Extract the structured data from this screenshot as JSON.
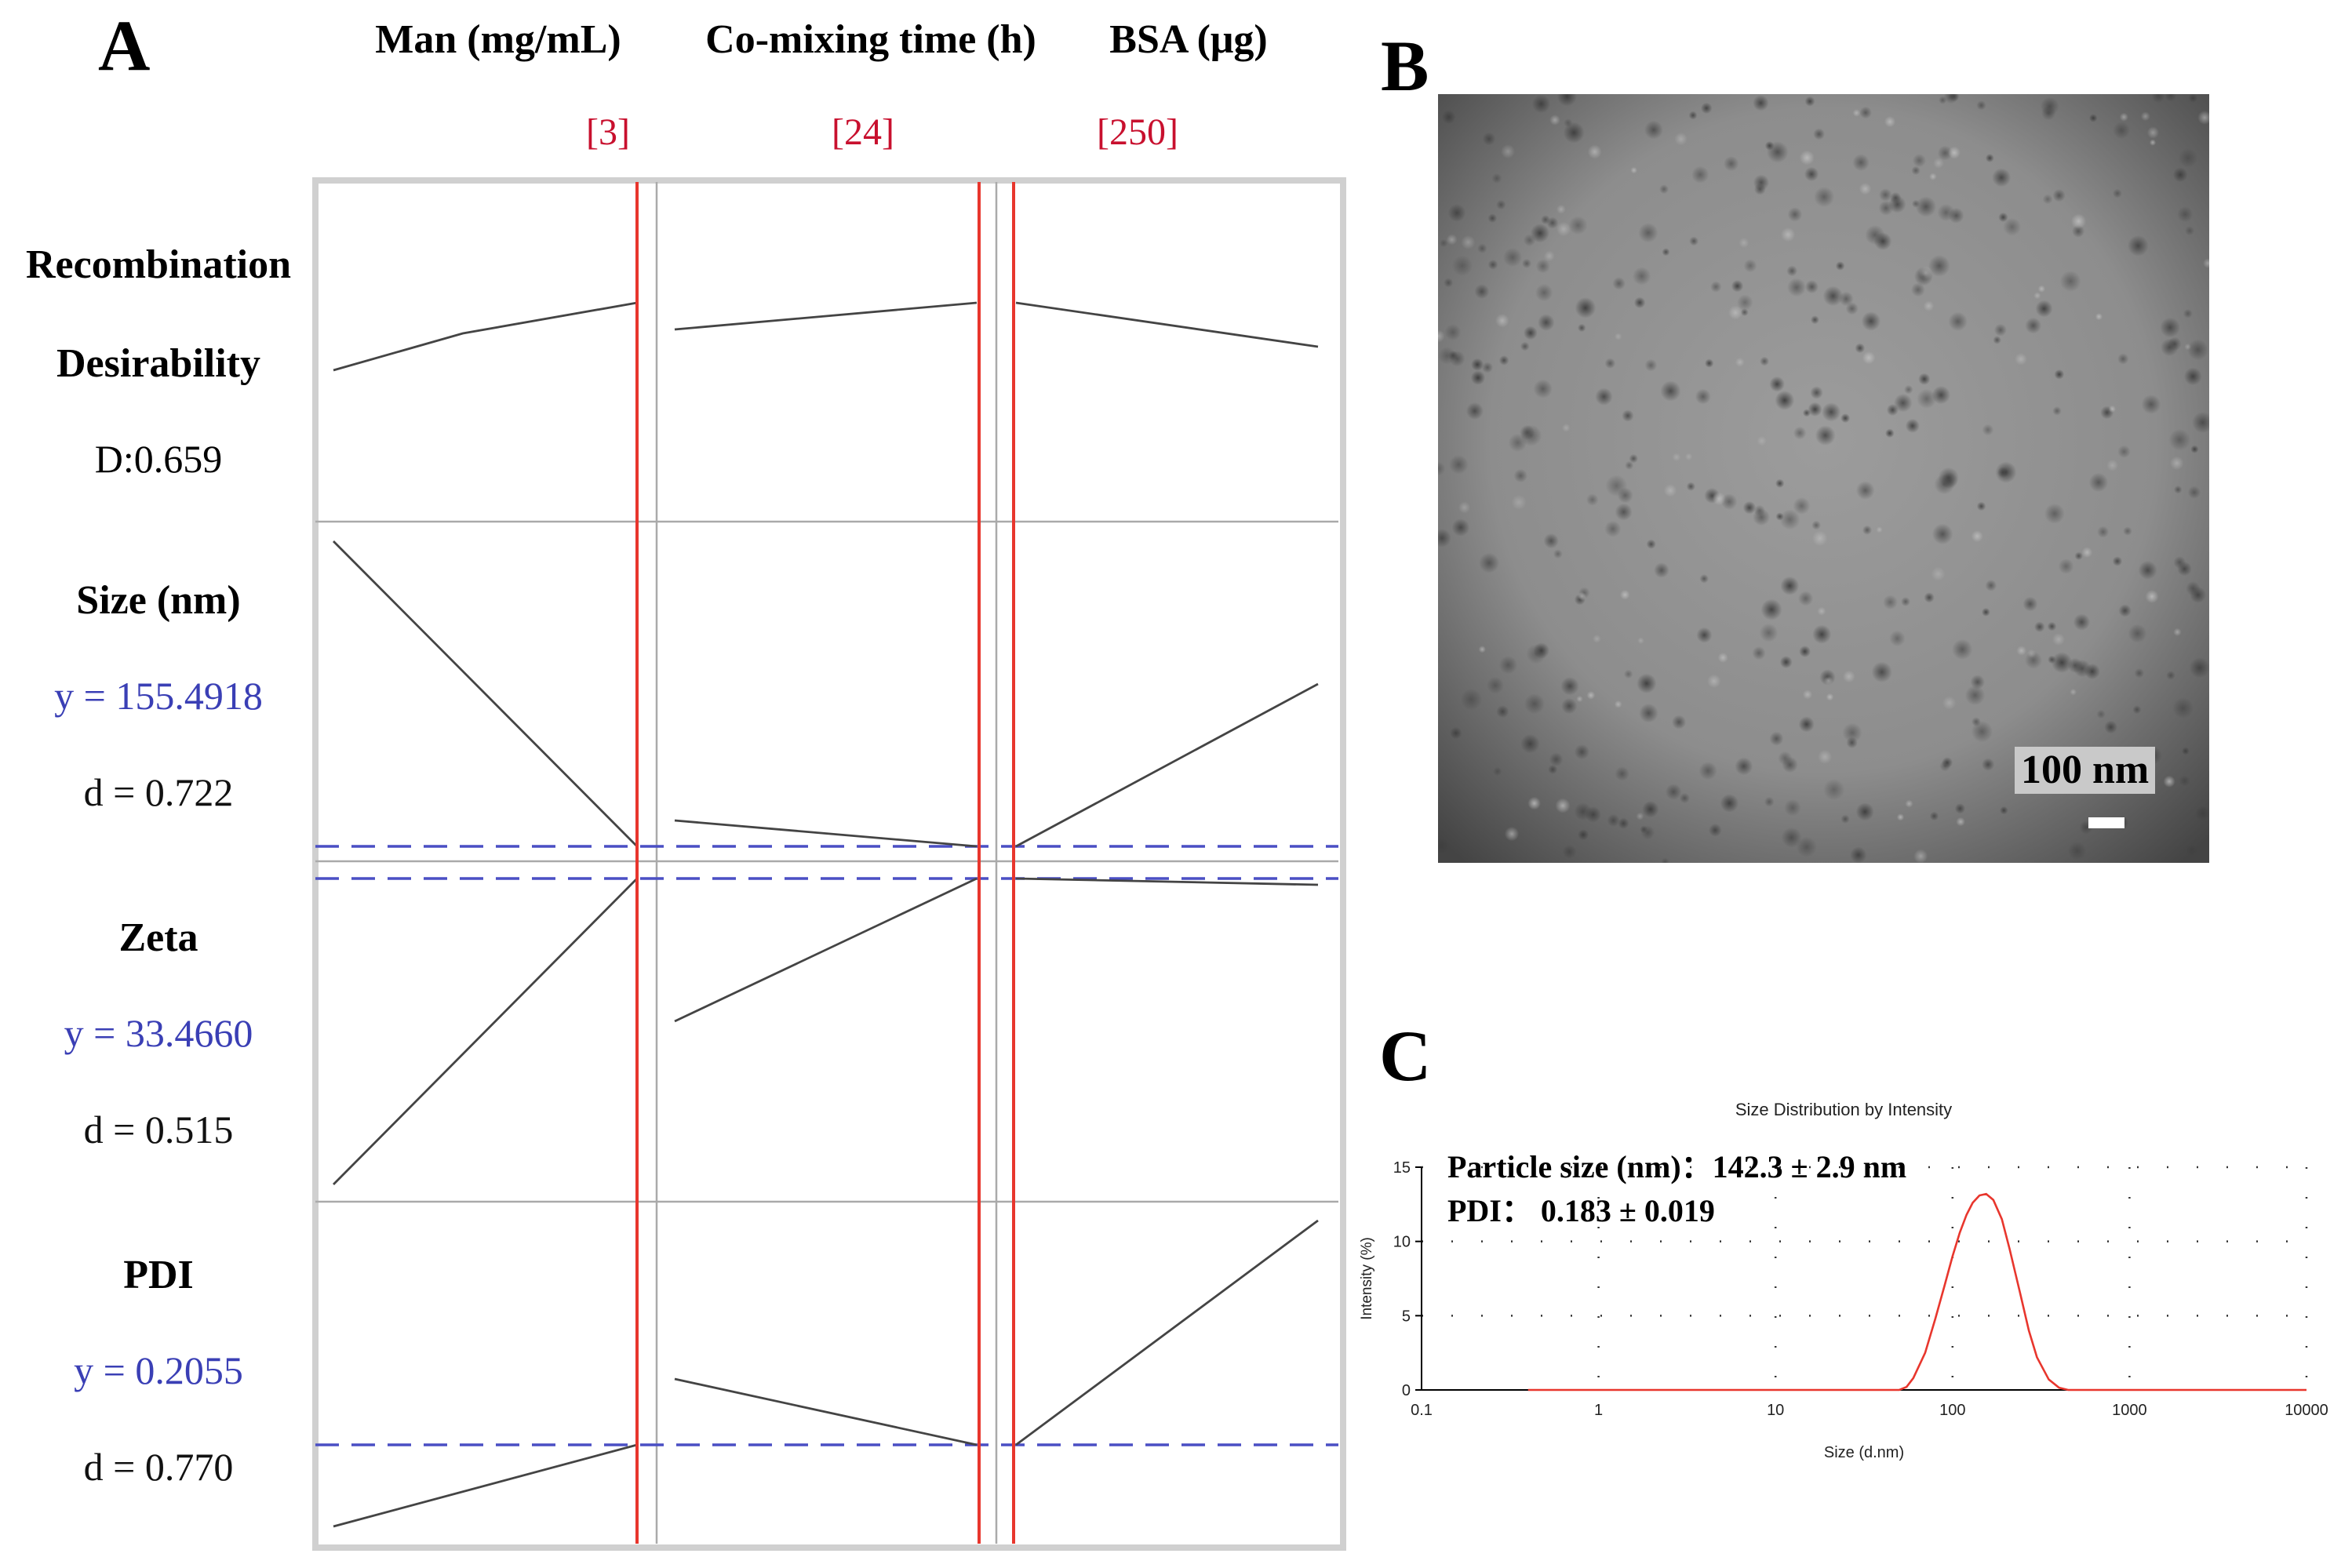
{
  "panels": {
    "a": "A",
    "b": "B",
    "c": "C"
  },
  "profiler": {
    "factors": [
      {
        "name": "Man (mg/mL)",
        "current": "[3]",
        "current_value": 3
      },
      {
        "name": "Co-mixing time (h)",
        "current": "[24]",
        "current_value": 24
      },
      {
        "name": "BSA (μg)",
        "current": "[250]",
        "current_value": 250
      }
    ],
    "responses": [
      {
        "name": "Size (nm)",
        "y": "y = 155.4918",
        "d": "d = 0.722"
      },
      {
        "name": "Zeta",
        "y": "y = 33.4660",
        "d": "d = 0.515"
      },
      {
        "name": "PDI",
        "y": "y = 0.2055",
        "d": "d = 0.770"
      }
    ],
    "desirability": {
      "line1": "Recombination",
      "line2": "Desirability",
      "value": "D:0.659"
    },
    "colors": {
      "current_line": "#e8362d",
      "reference_line": "#4a4fc4",
      "trace": "#444444",
      "grid": "#aaaaaa",
      "frame": "#d0d0d0"
    }
  },
  "tem": {
    "scale_label": "100 nm"
  },
  "chart_data": {
    "type": "line",
    "title": "Size Distribution by Intensity",
    "xlabel": "Size (d.nm)",
    "ylabel": "Intensity (%)",
    "xscale": "log",
    "xlim": [
      0.1,
      10000
    ],
    "ylim": [
      0,
      15
    ],
    "xticks": [
      "0.1",
      "1",
      "10",
      "100",
      "1000",
      "10000"
    ],
    "yticks": [
      "0",
      "5",
      "10",
      "15"
    ],
    "grid": true,
    "line_color": "#e8362d",
    "annotation_lines": [
      "Particle size (nm)：142.3 ± 2.9 nm",
      "PDI： 0.183 ± 0.019"
    ],
    "x": [
      0.4,
      50,
      55,
      60,
      70,
      80,
      90,
      100,
      110,
      120,
      130,
      142,
      155,
      170,
      190,
      210,
      240,
      270,
      300,
      350,
      400,
      450,
      500,
      1000,
      10000
    ],
    "y": [
      0,
      0,
      0.2,
      0.8,
      2.5,
      4.8,
      7.0,
      9.0,
      10.6,
      11.8,
      12.6,
      13.1,
      13.2,
      12.8,
      11.5,
      9.5,
      6.6,
      4.0,
      2.2,
      0.7,
      0.15,
      0,
      0,
      0,
      0
    ]
  }
}
